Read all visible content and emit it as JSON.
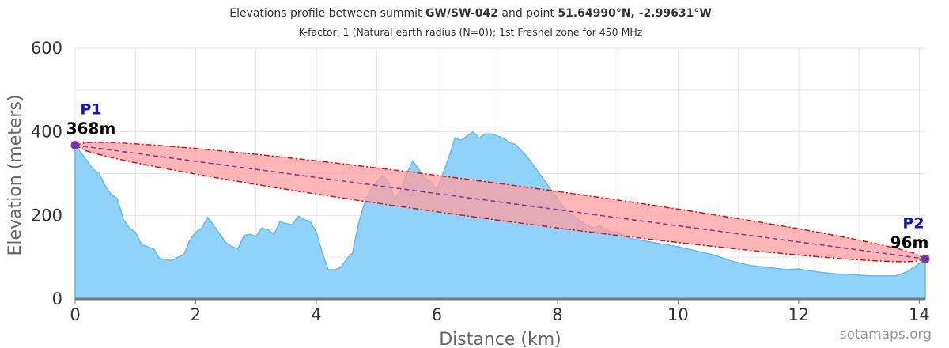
{
  "title": {
    "prefix": "Elevations profile between summit",
    "summit": "GW/SW-042",
    "middle": "and point",
    "point": "51.64990°N, -2.99631°W",
    "subtitle": "K-factor: 1 (Natural earth radius (N=0)); 1st Fresnel zone for 450 MHz"
  },
  "credit": "sotamaps.org",
  "chart_data": {
    "type": "area",
    "xlabel": "Distance (km)",
    "ylabel": "Elevation (meters)",
    "xlim": [
      0,
      14.1
    ],
    "ylim": [
      0,
      600
    ],
    "xticks": [
      0,
      2,
      4,
      6,
      8,
      10,
      12,
      14
    ],
    "yticks": [
      0,
      200,
      400,
      600
    ],
    "grid": true,
    "colors": {
      "terrain_fill": "#8fd3fb",
      "terrain_line": "#6ab8e6",
      "fresnel_fill": "#ff9e9e",
      "fresnel_edge": "#dd1111",
      "line_of_sight": "#8040a0"
    },
    "terrain": {
      "x": [
        0,
        0.1,
        0.2,
        0.3,
        0.4,
        0.5,
        0.6,
        0.7,
        0.8,
        0.9,
        1.0,
        1.1,
        1.2,
        1.3,
        1.4,
        1.5,
        1.6,
        1.7,
        1.8,
        1.9,
        2.0,
        2.1,
        2.2,
        2.3,
        2.4,
        2.5,
        2.6,
        2.7,
        2.8,
        2.9,
        3.0,
        3.1,
        3.2,
        3.3,
        3.4,
        3.5,
        3.6,
        3.7,
        3.8,
        3.9,
        4.0,
        4.1,
        4.2,
        4.3,
        4.4,
        4.5,
        4.6,
        4.7,
        4.8,
        4.9,
        5.0,
        5.1,
        5.2,
        5.3,
        5.4,
        5.5,
        5.6,
        5.7,
        5.8,
        5.9,
        6.0,
        6.1,
        6.2,
        6.3,
        6.4,
        6.5,
        6.6,
        6.7,
        6.8,
        6.9,
        7.0,
        7.1,
        7.2,
        7.3,
        7.4,
        7.5,
        7.6,
        7.7,
        7.8,
        7.9,
        8.0,
        8.1,
        8.2,
        8.3,
        8.4,
        8.5,
        8.6,
        8.7,
        8.8,
        8.9,
        9.0,
        9.2,
        9.4,
        9.6,
        9.8,
        10.0,
        10.3,
        10.6,
        10.9,
        11.2,
        11.5,
        11.8,
        12.0,
        12.3,
        12.6,
        12.9,
        13.2,
        13.4,
        13.6,
        13.8,
        14.0,
        14.1
      ],
      "y": [
        368,
        350,
        330,
        310,
        300,
        270,
        250,
        240,
        190,
        170,
        160,
        130,
        125,
        120,
        97,
        95,
        92,
        100,
        105,
        140,
        160,
        170,
        195,
        175,
        155,
        135,
        125,
        120,
        152,
        155,
        150,
        170,
        165,
        155,
        185,
        180,
        178,
        198,
        190,
        185,
        160,
        110,
        70,
        70,
        75,
        95,
        110,
        180,
        230,
        260,
        280,
        295,
        280,
        240,
        260,
        300,
        330,
        310,
        290,
        280,
        260,
        300,
        340,
        385,
        380,
        390,
        400,
        385,
        395,
        395,
        390,
        385,
        375,
        370,
        355,
        340,
        320,
        300,
        280,
        260,
        240,
        220,
        205,
        195,
        185,
        175,
        170,
        175,
        165,
        160,
        160,
        145,
        140,
        135,
        130,
        125,
        115,
        105,
        90,
        80,
        75,
        70,
        72,
        65,
        60,
        58,
        55,
        55,
        55,
        65,
        85,
        96
      ]
    },
    "line_of_sight": {
      "x": [
        0,
        14.1
      ],
      "y": [
        368,
        96
      ]
    },
    "fresnel_half_width_m": 44,
    "endpoints": [
      {
        "name": "P1",
        "label": "368m",
        "x": 0,
        "y": 368
      },
      {
        "name": "P2",
        "label": "96m",
        "x": 14.1,
        "y": 96
      }
    ]
  }
}
